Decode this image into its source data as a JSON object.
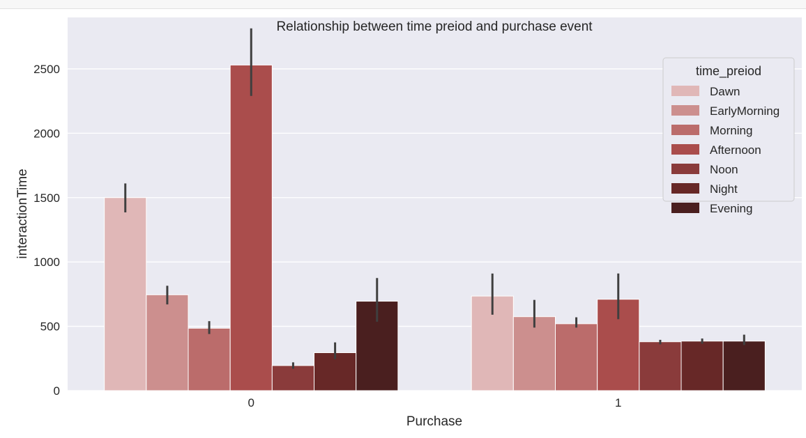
{
  "colors": {
    "plot_background": "#eaeaf2",
    "grid": "#ffffff",
    "error_bar": "#3f3f3f",
    "legend_background": "#eaeaf2",
    "legend_border": "#cccccc"
  },
  "chart_data": {
    "type": "bar",
    "title": "Relationship between time preiod and purchase event",
    "xlabel": "Purchase",
    "ylabel": "interactionTime",
    "categories": [
      "0",
      "1"
    ],
    "ylim": [
      0,
      2900
    ],
    "yticks": [
      0,
      500,
      1000,
      1500,
      2000,
      2500
    ],
    "grid": true,
    "legend": {
      "title": "time_preiod",
      "position": "top-right"
    },
    "series": [
      {
        "name": "Dawn",
        "color": "#e0b7b7",
        "values": [
          1500,
          735
        ],
        "ci_low": [
          1385,
          590
        ],
        "ci_high": [
          1610,
          910
        ]
      },
      {
        "name": "EarlyMorning",
        "color": "#cc8f8e",
        "values": [
          745,
          575
        ],
        "ci_low": [
          670,
          490
        ],
        "ci_high": [
          815,
          705
        ]
      },
      {
        "name": "Morning",
        "color": "#bb6c6b",
        "values": [
          485,
          520
        ],
        "ci_low": [
          440,
          490
        ],
        "ci_high": [
          540,
          570
        ]
      },
      {
        "name": "Afternoon",
        "color": "#aa4d4c",
        "values": [
          2530,
          710
        ],
        "ci_low": [
          2290,
          555
        ],
        "ci_high": [
          2815,
          910
        ]
      },
      {
        "name": "Noon",
        "color": "#8a3b3b",
        "values": [
          195,
          380
        ],
        "ci_low": [
          170,
          360
        ],
        "ci_high": [
          220,
          395
        ]
      },
      {
        "name": "Night",
        "color": "#672827",
        "values": [
          295,
          385
        ],
        "ci_low": [
          245,
          365
        ],
        "ci_high": [
          375,
          405
        ]
      },
      {
        "name": "Evening",
        "color": "#4a1f1f",
        "values": [
          695,
          385
        ],
        "ci_low": [
          535,
          355
        ],
        "ci_high": [
          875,
          435
        ]
      }
    ]
  }
}
